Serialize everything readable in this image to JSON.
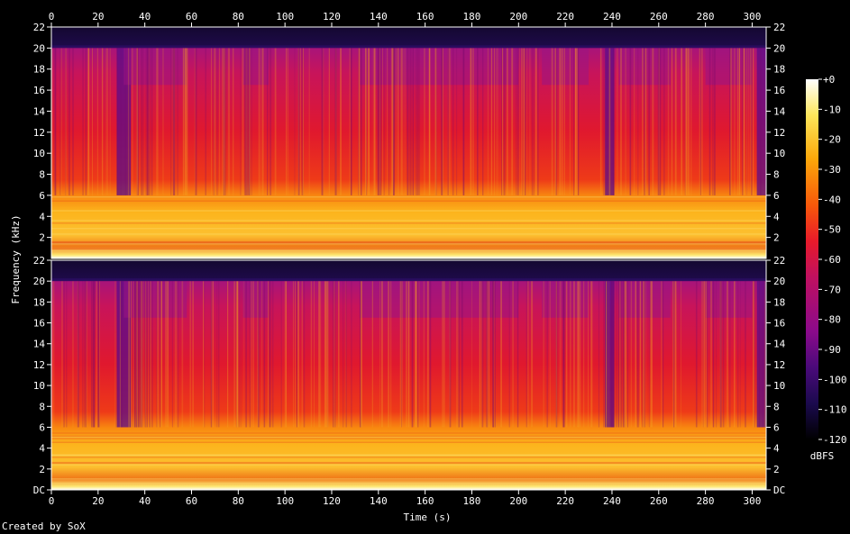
{
  "chart_data": {
    "type": "heatmap",
    "title": "",
    "xlabel": "Time (s)",
    "ylabel": "Frequency (kHz)",
    "x_ticks": [
      "0",
      "20",
      "40",
      "60",
      "80",
      "100",
      "120",
      "140",
      "160",
      "180",
      "200",
      "220",
      "240",
      "260",
      "280",
      "300"
    ],
    "xlim": [
      0,
      306
    ],
    "channels": [
      {
        "name": "",
        "y_ticks": [
          "22",
          "20",
          "18",
          "16",
          "14",
          "12",
          "10",
          "8",
          "6",
          "4",
          "2"
        ]
      },
      {
        "name": "",
        "y_ticks": [
          "22",
          "20",
          "18",
          "16",
          "14",
          "12",
          "10",
          "8",
          "6",
          "4",
          "2",
          "DC"
        ]
      }
    ],
    "ylim_khz": [
      0,
      22
    ],
    "colorbar": {
      "label": "dBFS",
      "ticks": [
        "+0",
        "-10",
        "-20",
        "-30",
        "-40",
        "-50",
        "-60",
        "-70",
        "-80",
        "-90",
        "-100",
        "-110",
        "-120"
      ],
      "range": [
        -120,
        0
      ]
    },
    "content_cutoff_khz": 20,
    "loud_band_khz": 6,
    "colormap": [
      "#000000",
      "#1b0a4e",
      "#4a0a7a",
      "#8b0a8b",
      "#c01060",
      "#e81a2a",
      "#f8580a",
      "#fca80a",
      "#fde65a",
      "#ffffff"
    ]
  },
  "footer": {
    "text": "Created by SoX"
  }
}
